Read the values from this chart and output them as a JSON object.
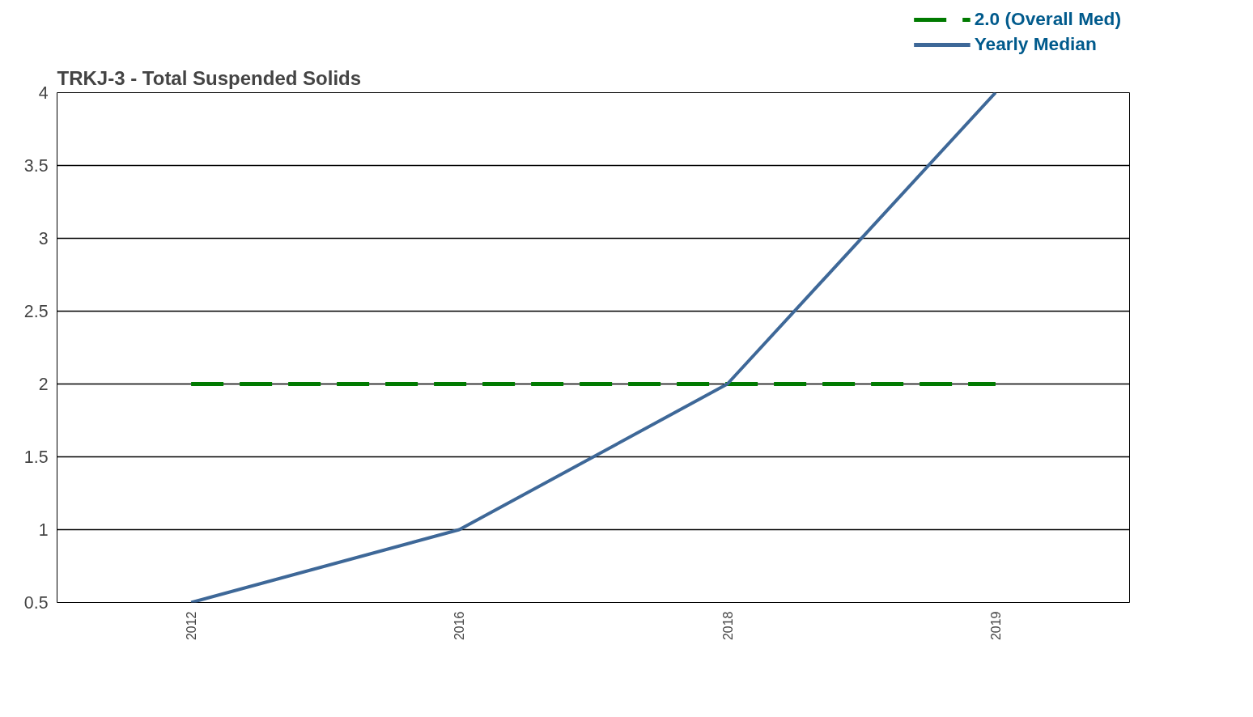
{
  "chart_data": {
    "type": "line",
    "title": "TRKJ-3 - Total Suspended Solids",
    "categories": [
      "2012",
      "2016",
      "2018",
      "2019"
    ],
    "series": [
      {
        "name": "Yearly Median",
        "color": "#3e6898",
        "values": [
          0.5,
          1,
          2,
          4
        ]
      }
    ],
    "ylim": [
      0.5,
      4
    ],
    "yticks": [
      0.5,
      1,
      1.5,
      2,
      2.5,
      3,
      3.5,
      4
    ],
    "grid": "y",
    "legend": "top right",
    "line_style": "solid",
    "marker": "none",
    "ref_lines": [
      {
        "axis": "y",
        "value": 2,
        "label": "2.0 (Overall Med)",
        "color": "#007a00",
        "line_style": "dashed"
      }
    ]
  }
}
